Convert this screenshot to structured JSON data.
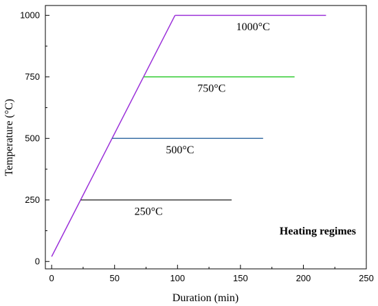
{
  "chart_data": {
    "type": "line",
    "title": "",
    "xlabel": "Duration (min)",
    "ylabel": "Temperature (°C)",
    "xlim": [
      -5,
      250
    ],
    "ylim": [
      -30,
      1040
    ],
    "x_ticks": [
      0,
      50,
      100,
      150,
      200,
      250
    ],
    "y_ticks": [
      0,
      250,
      500,
      750,
      1000
    ],
    "grid": false,
    "annotation": "Heating regimes",
    "ramp": {
      "color": "#9b30d9",
      "x": [
        0,
        98
      ],
      "y": [
        20,
        1000
      ]
    },
    "series": [
      {
        "name": "250°C",
        "color": "#404040",
        "x": [
          23,
          143
        ],
        "y": [
          250,
          250
        ],
        "label_x": 77,
        "label_y": 190
      },
      {
        "name": "500°C",
        "color": "#3a6ea5",
        "x": [
          48,
          168
        ],
        "y": [
          500,
          500
        ],
        "label_x": 102,
        "label_y": 440
      },
      {
        "name": "750°C",
        "color": "#33cc33",
        "x": [
          73,
          193
        ],
        "y": [
          750,
          750
        ],
        "label_x": 127,
        "label_y": 690
      },
      {
        "name": "1000°C",
        "color": "#9b30d9",
        "x": [
          98,
          218
        ],
        "y": [
          1000,
          1000
        ],
        "label_x": 160,
        "label_y": 940
      }
    ]
  }
}
